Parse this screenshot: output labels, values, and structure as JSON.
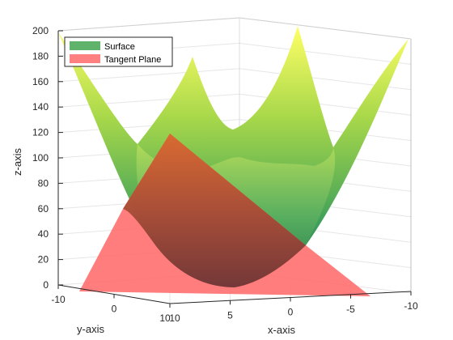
{
  "chart_data": {
    "type": "surface3d",
    "title": "",
    "xlabel": "x-axis",
    "ylabel": "y-axis",
    "zlabel": "z-axis",
    "xlim": [
      -10,
      10
    ],
    "ylim": [
      -10,
      10
    ],
    "zlim": [
      0,
      200
    ],
    "x_ticks": [
      "10",
      "5",
      "0",
      "-5",
      "-10"
    ],
    "y_ticks": [
      "-10",
      "0",
      "10"
    ],
    "z_ticks": [
      "0",
      "20",
      "40",
      "60",
      "80",
      "100",
      "120",
      "140",
      "160",
      "180",
      "200"
    ],
    "grid": true,
    "legend_position": "top-left",
    "series": [
      {
        "name": "Surface",
        "function": "z = x^2 + y^2",
        "color": "#5fb36a",
        "colormap": [
          "#2e8b57",
          "#9acd32",
          "#ffff66"
        ]
      },
      {
        "name": "Tangent Plane",
        "color": "#ff6b6b",
        "opacity": 0.85
      }
    ]
  }
}
